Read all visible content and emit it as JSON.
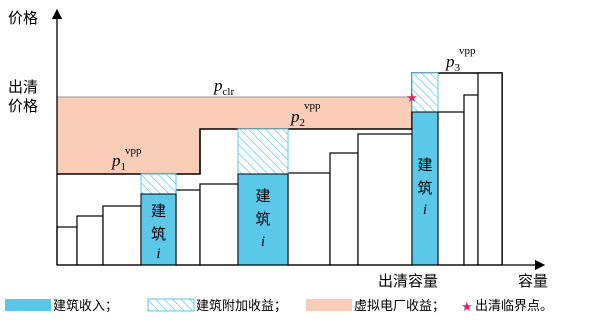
{
  "axes": {
    "y_label": "价格",
    "x_label": "容量",
    "clearing_price_label_line1": "出清",
    "clearing_price_label_line2": "价格",
    "clearing_capacity_label": "出清容量"
  },
  "price_labels": {
    "p_clr": {
      "base": "p",
      "sub": "clr"
    },
    "p1": {
      "base": "p",
      "sub": "1",
      "sup": "vpp"
    },
    "p2": {
      "base": "p",
      "sub": "2",
      "sup": "vpp"
    },
    "p3": {
      "base": "p",
      "sub": "3",
      "sup": "vpp"
    }
  },
  "building_labels": [
    {
      "line1": "建",
      "line2": "筑",
      "line3": "i"
    },
    {
      "line1": "建",
      "line2": "筑",
      "line3": "i"
    },
    {
      "line1": "建",
      "line2": "筑",
      "line3": "i"
    }
  ],
  "legend": {
    "building_income": "建筑收入；",
    "building_extra_income": "建筑附加收益；",
    "vpp_income": "虚拟电厂收益；",
    "clearing_point": "出清临界点。",
    "star_symbol": "★"
  },
  "colors": {
    "building_income": "#5bc8ea",
    "hatch": "#5bc8ea",
    "vpp_income": "#f9cdb8",
    "star": "#e0226e",
    "line": "#000000",
    "clearing_line": "#999999"
  }
}
